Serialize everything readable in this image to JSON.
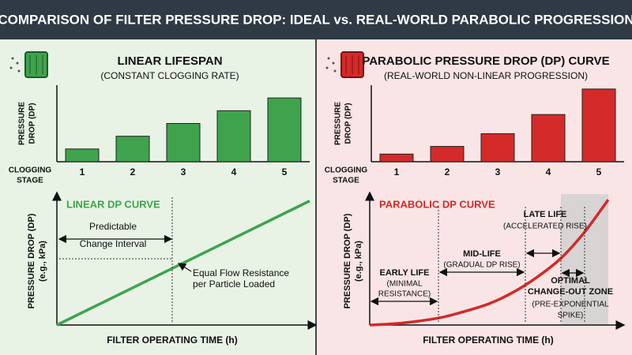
{
  "title": "COMPARISON OF FILTER PRESSURE DROP: IDEAL vs. REAL-WORLD PARABOLIC PROGRESSION",
  "chart_data": [
    {
      "type": "bar",
      "title": "LINEAR LIFESPAN",
      "subtitle": "(CONSTANT CLOGGING RATE)",
      "ylabel": [
        "PRESSURE",
        "DROP (DP)"
      ],
      "xlabel": [
        "CLOGGING",
        "STAGE"
      ],
      "categories": [
        "1",
        "2",
        "3",
        "4",
        "5"
      ],
      "values": [
        1,
        2,
        3,
        4,
        5
      ],
      "ylim": [
        0,
        6
      ],
      "color": "#3fa34d"
    },
    {
      "type": "line",
      "title": "LINEAR DP CURVE",
      "ylabel": [
        "PRESSURE DROP (DP)",
        "(e.g., kPa)"
      ],
      "xlabel": "FILTER OPERATING TIME (h)",
      "x": [
        0,
        10
      ],
      "values": [
        0,
        10
      ],
      "xlim": [
        0,
        10
      ],
      "ylim": [
        0,
        10.3
      ],
      "color": "#3fa34d",
      "annotations": [
        "Predictable",
        "Change Interval",
        "Equal Flow Resistance",
        "per Particle Loaded"
      ]
    },
    {
      "type": "bar",
      "title": "PARABOLIC PRESSURE DROP (DP) CURVE",
      "subtitle": "(REAL-WORLD NON-LINEAR PROGRESSION)",
      "ylabel": [
        "PRESSURE",
        "DROP (DP)"
      ],
      "xlabel": [
        "CLOGGING",
        "STAGE"
      ],
      "categories": [
        "1",
        "2",
        "3",
        "4",
        "5"
      ],
      "values": [
        0.6,
        1.2,
        2.2,
        3.7,
        5.7
      ],
      "ylim": [
        0,
        6
      ],
      "color": "#d42a2a"
    },
    {
      "type": "line",
      "title": "PARABOLIC DP CURVE",
      "ylabel": [
        "PRESSURE DROP (DP)",
        "(e.g., kPa)"
      ],
      "xlabel": "FILTER OPERATING TIME (h)",
      "x": [
        0,
        1,
        2,
        3,
        4,
        5,
        6,
        7,
        8,
        9,
        10
      ],
      "values": [
        0,
        0.1,
        0.3,
        0.6,
        1.1,
        1.7,
        2.6,
        3.8,
        5.3,
        7.4,
        10
      ],
      "xlim": [
        0,
        10.4
      ],
      "ylim": [
        0,
        10.2
      ],
      "color": "#d42a2a",
      "annotations": [
        "EARLY LIFE",
        "(MINIMAL",
        "RESISTANCE)",
        "MID-LIFE",
        "(GRADUAL DP RISE)",
        "LATE LIFE",
        "(ACCELERATED RISE)",
        "OPTIMAL",
        "CHANGE-OUT ZONE",
        "(PRE-EXPONENTIAL",
        "SPIKE)"
      ]
    }
  ]
}
